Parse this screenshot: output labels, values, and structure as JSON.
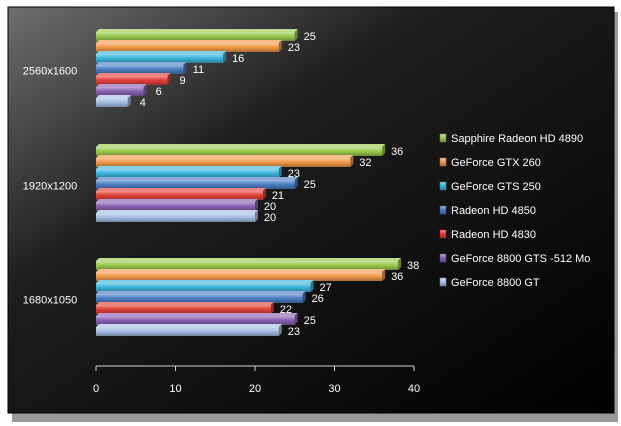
{
  "chart_data": {
    "type": "bar",
    "orientation": "horizontal",
    "categories": [
      "2560x1600",
      "1920x1200",
      "1680x1050"
    ],
    "series": [
      {
        "name": "Sapphire Radeon HD 4890",
        "values": [
          25,
          36,
          38
        ],
        "color": "#9BCB4E"
      },
      {
        "name": "GeForce GTX 260",
        "values": [
          23,
          32,
          36
        ],
        "color": "#F39A4A"
      },
      {
        "name": "GeForce GTS 250",
        "values": [
          16,
          23,
          27
        ],
        "color": "#3DB6DC"
      },
      {
        "name": "Radeon HD 4850",
        "values": [
          11,
          25,
          26
        ],
        "color": "#4D7FC6"
      },
      {
        "name": "Radeon HD 4830",
        "values": [
          9,
          21,
          22
        ],
        "color": "#E3413A"
      },
      {
        "name": "GeForce 8800 GTS -512 Mo",
        "values": [
          6,
          20,
          25
        ],
        "color": "#8A62B3"
      },
      {
        "name": "GeForce 8800 GT",
        "values": [
          4,
          20,
          23
        ],
        "color": "#A9C0E6"
      }
    ],
    "xlim": [
      0,
      40
    ],
    "x_ticks": [
      "0",
      "10",
      "20",
      "30",
      "40"
    ],
    "legend": "right",
    "grid": false,
    "background": "#000000"
  }
}
